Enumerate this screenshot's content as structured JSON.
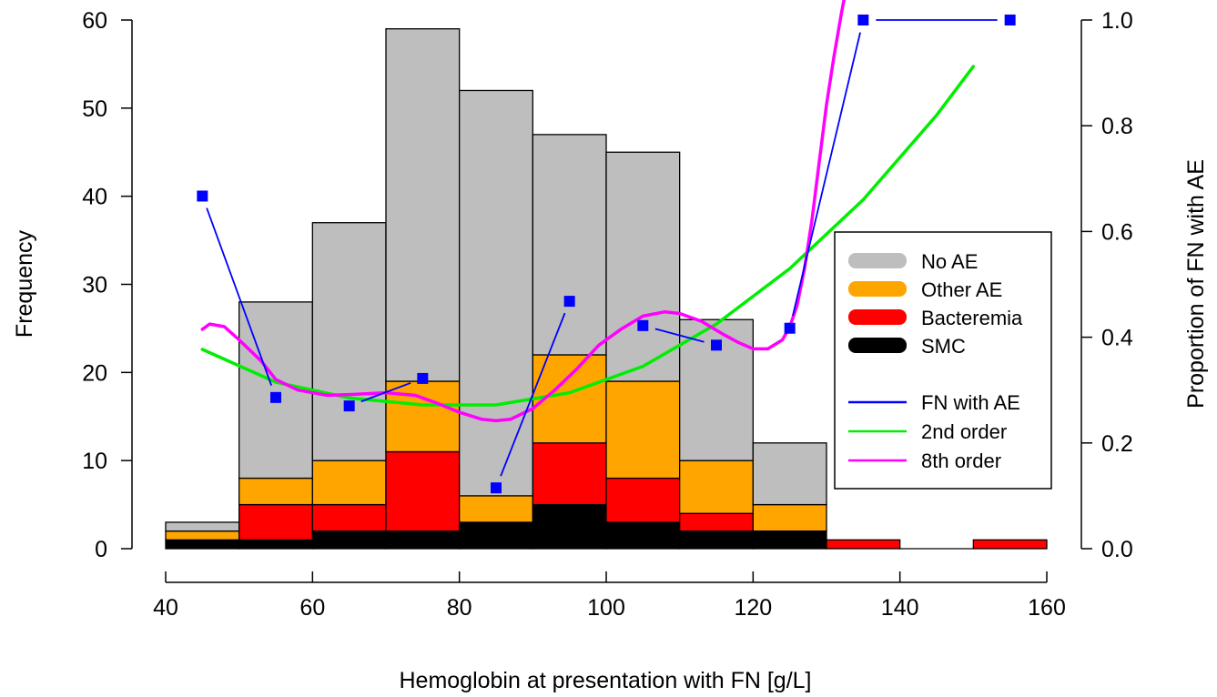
{
  "chart_data": {
    "type": "bar",
    "subtype": "stacked-histogram-with-secondary-line-axis",
    "xlabel": "Hemoglobin at presentation with FN [g/L]",
    "ylabel": "Frequency",
    "y2label": "Proportion of FN with AE",
    "xlim": [
      40,
      160
    ],
    "ylim": [
      0,
      60
    ],
    "y2lim": [
      0,
      1
    ],
    "x_ticks": [
      "40",
      "60",
      "80",
      "100",
      "120",
      "140",
      "160"
    ],
    "y_ticks": [
      "0",
      "10",
      "20",
      "30",
      "40",
      "50",
      "60"
    ],
    "y2_ticks": [
      "0.0",
      "0.2",
      "0.4",
      "0.6",
      "0.8",
      "1.0"
    ],
    "grid": false,
    "legend_position": "right",
    "bins": [
      {
        "from": 40,
        "to": 50
      },
      {
        "from": 50,
        "to": 60
      },
      {
        "from": 60,
        "to": 70
      },
      {
        "from": 70,
        "to": 80
      },
      {
        "from": 80,
        "to": 90
      },
      {
        "from": 90,
        "to": 100
      },
      {
        "from": 100,
        "to": 110
      },
      {
        "from": 110,
        "to": 120
      },
      {
        "from": 120,
        "to": 130
      },
      {
        "from": 130,
        "to": 140
      },
      {
        "from": 140,
        "to": 150
      },
      {
        "from": 150,
        "to": 160
      }
    ],
    "series": [
      {
        "name": "SMC",
        "color": "#000000",
        "values": [
          1,
          1,
          2,
          2,
          3,
          5,
          3,
          2,
          2,
          0,
          0,
          0
        ]
      },
      {
        "name": "Bacteremia",
        "color": "#ff0000",
        "values": [
          0,
          4,
          3,
          9,
          0,
          7,
          5,
          2,
          0,
          1,
          0,
          1
        ]
      },
      {
        "name": "Other AE",
        "color": "#ffa500",
        "values": [
          1,
          3,
          5,
          8,
          3,
          10,
          11,
          6,
          3,
          0,
          0,
          0
        ]
      },
      {
        "name": "No AE",
        "color": "#bebebe",
        "values": [
          1,
          20,
          27,
          40,
          46,
          25,
          26,
          16,
          7,
          0,
          0,
          0
        ]
      }
    ],
    "lines": [
      {
        "name": "FN with AE",
        "color": "#0000ff",
        "marker": "square",
        "x": [
          45,
          55,
          65,
          75,
          85,
          95,
          105,
          115,
          125,
          135,
          155
        ],
        "y": [
          0.667,
          0.286,
          0.27,
          0.322,
          0.115,
          0.468,
          0.422,
          0.385,
          0.417,
          1.0,
          1.0
        ],
        "segments": [
          [
            0,
            1
          ],
          [
            2,
            3
          ],
          [
            4,
            5
          ],
          [
            6,
            7
          ],
          [
            8,
            9
          ],
          [
            9,
            10
          ]
        ]
      },
      {
        "name": "2nd order",
        "color": "#00ee00",
        "x": [
          45,
          55,
          65,
          75,
          85,
          95,
          105,
          115,
          125,
          135,
          145,
          150
        ],
        "y": [
          0.377,
          0.315,
          0.285,
          0.272,
          0.272,
          0.295,
          0.345,
          0.425,
          0.53,
          0.66,
          0.82,
          0.912
        ]
      },
      {
        "name": "8th order",
        "color": "#ff00ff",
        "x": [
          45,
          46,
          48,
          50,
          53,
          55,
          58,
          62,
          66,
          70,
          74,
          77,
          80,
          83,
          85,
          87,
          90,
          93,
          96,
          99,
          102,
          105,
          108,
          110,
          113,
          116,
          118,
          120,
          122,
          124,
          125,
          126,
          127,
          128,
          129,
          130,
          131,
          132,
          132.8
        ],
        "y": [
          0.415,
          0.425,
          0.42,
          0.395,
          0.355,
          0.32,
          0.3,
          0.29,
          0.292,
          0.295,
          0.29,
          0.275,
          0.258,
          0.245,
          0.242,
          0.245,
          0.265,
          0.3,
          0.34,
          0.385,
          0.415,
          0.44,
          0.448,
          0.445,
          0.43,
          0.405,
          0.39,
          0.378,
          0.378,
          0.395,
          0.42,
          0.46,
          0.53,
          0.62,
          0.73,
          0.84,
          0.93,
          1.01,
          1.07
        ]
      }
    ]
  }
}
